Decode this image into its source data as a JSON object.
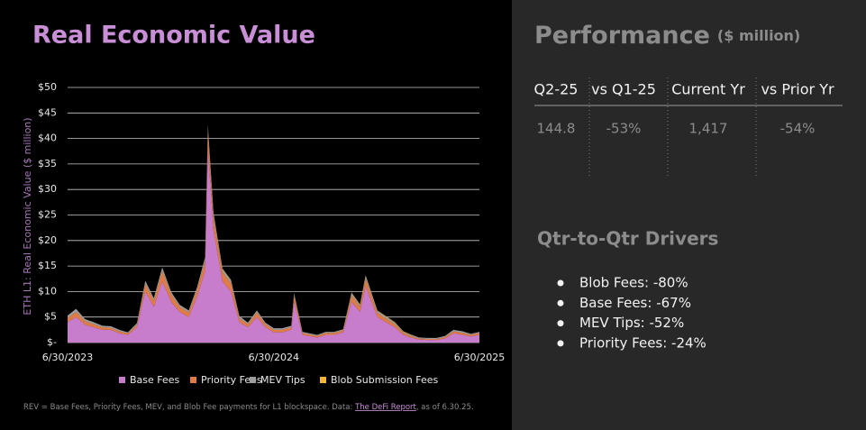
{
  "chart_data": {
    "type": "stacked-area",
    "title": "Real Economic Value",
    "y_label": "ETH L1: Real Economic Value ($ million)",
    "x": [
      "6/30/2023",
      "7/15/2023",
      "7/31/2023",
      "8/15/2023",
      "8/31/2023",
      "9/15/2023",
      "9/30/2023",
      "10/15/2023",
      "10/31/2023",
      "11/15/2023",
      "11/30/2023",
      "12/15/2023",
      "12/31/2023",
      "1/15/2024",
      "1/31/2024",
      "2/15/2024",
      "2/29/2024",
      "3/5/2024",
      "3/15/2024",
      "3/31/2024",
      "4/15/2024",
      "4/30/2024",
      "5/15/2024",
      "5/31/2024",
      "6/15/2024",
      "6/30/2024",
      "7/15/2024",
      "7/31/2024",
      "8/5/2024",
      "8/20/2024",
      "9/15/2024",
      "9/30/2024",
      "10/15/2024",
      "10/31/2024",
      "11/15/2024",
      "11/30/2024",
      "12/10/2024",
      "12/31/2024",
      "1/15/2025",
      "1/31/2025",
      "2/15/2025",
      "2/28/2025",
      "3/15/2025",
      "3/31/2025",
      "4/15/2025",
      "4/30/2025",
      "5/15/2025",
      "5/31/2025",
      "6/15/2025",
      "6/30/2025"
    ],
    "series": [
      {
        "name": "Base Fees",
        "color": "#c77dcc",
        "values": [
          4,
          5,
          3.5,
          3,
          2.5,
          2.5,
          1.8,
          1.5,
          3,
          10,
          7,
          12,
          8,
          6,
          5,
          9,
          14,
          38,
          22,
          12,
          10,
          4,
          3,
          5,
          3,
          2,
          2,
          2.5,
          8,
          1.5,
          1,
          1.5,
          1.5,
          2,
          8,
          6,
          11,
          5,
          4,
          3,
          1.5,
          1,
          0.6,
          0.5,
          0.5,
          0.8,
          1.8,
          1.5,
          1.2,
          1.5
        ]
      },
      {
        "name": "Priority Fees",
        "color": "#e07b45",
        "values": [
          0.8,
          1,
          0.7,
          0.6,
          0.5,
          0.4,
          0.4,
          0.3,
          0.5,
          1.5,
          1.2,
          2,
          1.4,
          1,
          0.9,
          1.4,
          2,
          3.5,
          2.5,
          1.8,
          1.6,
          0.8,
          0.6,
          0.9,
          0.6,
          0.5,
          0.5,
          0.5,
          1.2,
          0.4,
          0.3,
          0.4,
          0.4,
          0.4,
          1.2,
          1,
          1.5,
          0.8,
          0.7,
          0.6,
          0.4,
          0.3,
          0.2,
          0.2,
          0.2,
          0.3,
          0.4,
          0.4,
          0.3,
          0.4
        ]
      },
      {
        "name": "MEV Tips",
        "color": "#9e9e9e",
        "values": [
          0.5,
          0.6,
          0.4,
          0.4,
          0.3,
          0.3,
          0.3,
          0.2,
          0.3,
          0.6,
          0.5,
          0.7,
          0.5,
          0.4,
          0.4,
          0.5,
          0.7,
          1.2,
          0.9,
          0.6,
          0.6,
          0.4,
          0.3,
          0.4,
          0.3,
          0.3,
          0.3,
          0.3,
          0.5,
          0.2,
          0.2,
          0.2,
          0.2,
          0.2,
          0.5,
          0.4,
          0.6,
          0.4,
          0.4,
          0.3,
          0.2,
          0.2,
          0.2,
          0.2,
          0.2,
          0.2,
          0.3,
          0.3,
          0.2,
          0.2
        ]
      },
      {
        "name": "Blob Submission Fees",
        "color": "#f5b731",
        "values": [
          0,
          0,
          0,
          0,
          0,
          0,
          0,
          0,
          0,
          0,
          0,
          0,
          0,
          0,
          0,
          0,
          0,
          0,
          0.1,
          0.1,
          0.1,
          0,
          0,
          0,
          0,
          0,
          0,
          0,
          0,
          0,
          0,
          0,
          0,
          0,
          0.1,
          0.1,
          0.1,
          0.1,
          0.1,
          0.1,
          0.1,
          0.1,
          0,
          0,
          0,
          0,
          0,
          0,
          0,
          0
        ]
      }
    ],
    "xlim": [
      "6/30/2023",
      "6/30/2025"
    ],
    "xticks": [
      "6/30/2023",
      "6/30/2024",
      "6/30/2025"
    ],
    "ylim": [
      0,
      50
    ],
    "yticks": [
      {
        "value": 0,
        "label": "$-"
      },
      {
        "value": 5,
        "label": "$5"
      },
      {
        "value": 10,
        "label": "$10"
      },
      {
        "value": 15,
        "label": "$15"
      },
      {
        "value": 20,
        "label": "$20"
      },
      {
        "value": 25,
        "label": "$25"
      },
      {
        "value": 30,
        "label": "$30"
      },
      {
        "value": 35,
        "label": "$35"
      },
      {
        "value": 40,
        "label": "$40"
      },
      {
        "value": 45,
        "label": "$45"
      },
      {
        "value": 50,
        "label": "$50"
      }
    ],
    "grid": true,
    "legend": "bottom"
  },
  "footnote": {
    "text": "REV = Base Fees, Priority Fees, MEV, and Blob Fee payments for L1 blockspace. Data: ",
    "link": "The DeFi Report",
    "suffix": ", as of 6.30.25."
  },
  "performance": {
    "title": "Performance",
    "subtitle": "($ million)",
    "table": {
      "headers": [
        "Q2-25",
        "vs Q1-25",
        "Current Yr",
        "vs Prior Yr"
      ],
      "rows": [
        [
          "144.8",
          "-53%",
          "1,417",
          "-54%"
        ]
      ]
    },
    "drivers": {
      "title": "Qtr-to-Qtr Drivers",
      "items": [
        "Blob Fees: -80%",
        "Base Fees: -67%",
        "MEV Tips: -52%",
        "Priority Fees: -24%"
      ]
    }
  }
}
